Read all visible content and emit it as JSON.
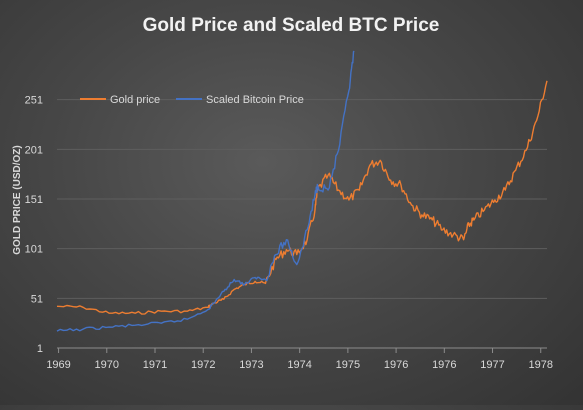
{
  "colors": {
    "gold": "#ed7d31",
    "btc": "#4472c4",
    "text": "#d9d9d9",
    "title": "#f2f2f2",
    "grid": "#5e5e5e",
    "axis": "#8c8c8c"
  },
  "chart_data": {
    "type": "line",
    "title": "Gold Price and Scaled BTC Price",
    "xlabel": "",
    "ylabel": "GOLD PRICE (USD/OZ)",
    "xlim": [
      1969,
      1978.4
    ],
    "ylim": [
      1,
      301
    ],
    "y_ticks": [
      1,
      51,
      101,
      151,
      201,
      251
    ],
    "x_tick_labels": [
      "1969",
      "1970",
      "1971",
      "1972",
      "1973",
      "1974",
      "1975",
      "1976",
      "1976",
      "1977",
      "1978"
    ],
    "grid": true,
    "legend_position": "top-left",
    "series": [
      {
        "name": "Gold price",
        "color": "#ed7d31",
        "x": [
          1969,
          1969.5,
          1970,
          1970.5,
          1971,
          1971.5,
          1971.9,
          1972,
          1972.2,
          1972.4,
          1972.6,
          1972.8,
          1973,
          1973.2,
          1973.4,
          1973.6,
          1973.8,
          1973.95,
          1974,
          1974.2,
          1974.4,
          1974.6,
          1974.8,
          1975,
          1975.2,
          1975.4,
          1975.6,
          1975.8,
          1976,
          1976.2,
          1976.4,
          1976.6,
          1976.8,
          1976.9,
          1977,
          1977.2,
          1977.4,
          1977.6,
          1977.8,
          1978,
          1978.2,
          1978.4
        ],
        "y": [
          43,
          42,
          36,
          36,
          38,
          38,
          42,
          46,
          50,
          60,
          65,
          68,
          66,
          90,
          100,
          95,
          110,
          140,
          160,
          175,
          160,
          150,
          160,
          185,
          190,
          170,
          165,
          145,
          135,
          130,
          120,
          115,
          110,
          125,
          130,
          140,
          150,
          160,
          180,
          200,
          230,
          270
        ]
      },
      {
        "name": "Scaled Bitcoin Price",
        "color": "#4472c4",
        "x": [
          1969,
          1969.5,
          1970,
          1970.5,
          1971,
          1971.5,
          1971.9,
          1972,
          1972.2,
          1972.4,
          1972.6,
          1972.8,
          1973,
          1973.2,
          1973.4,
          1973.6,
          1973.8,
          1973.95,
          1974,
          1974.2,
          1974.4,
          1974.6,
          1974.7
        ],
        "y": [
          18,
          20,
          22,
          24,
          26,
          30,
          40,
          46,
          58,
          70,
          65,
          72,
          70,
          95,
          110,
          85,
          120,
          155,
          165,
          160,
          200,
          260,
          300
        ]
      }
    ]
  }
}
